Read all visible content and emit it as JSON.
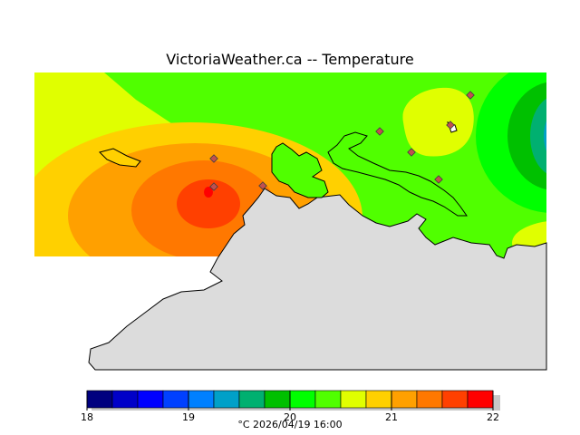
{
  "title": "VictoriaWeather.ca -- Temperature",
  "legend": {
    "footer": "°C  2026/04/19 16:00",
    "ticks": [
      "18",
      "19",
      "20",
      "21",
      "22"
    ],
    "colors": [
      "#00007f",
      "#0000c8",
      "#0000ff",
      "#0040ff",
      "#0080ff",
      "#00a0c8",
      "#00b070",
      "#00c000",
      "#00ff00",
      "#50ff00",
      "#e0ff00",
      "#ffd000",
      "#ffa000",
      "#ff7800",
      "#ff4000",
      "#ff0000"
    ]
  },
  "map": {
    "land_color": "#dcdcdc",
    "background_color": "#ffffff",
    "stations_count_visible": 8
  }
}
